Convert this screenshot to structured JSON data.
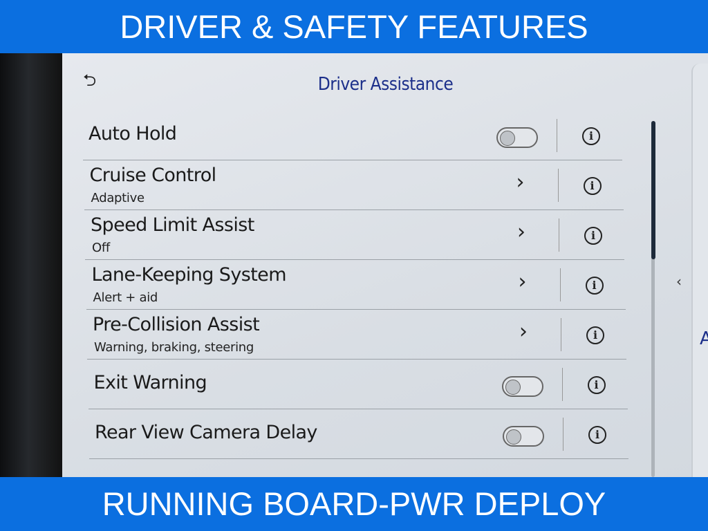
{
  "banners": {
    "top": "DRIVER & SAFETY FEATURES",
    "bottom": "RUNNING BOARD-PWR DEPLOY"
  },
  "screen": {
    "title": "Driver Assistance",
    "back_icon": "back-arrow-icon",
    "rows": [
      {
        "label": "Auto Hold",
        "sub": "",
        "control": "toggle",
        "on": false
      },
      {
        "label": "Cruise Control",
        "sub": "Adaptive",
        "control": "chevron"
      },
      {
        "label": "Speed Limit Assist",
        "sub": "Off",
        "control": "chevron"
      },
      {
        "label": "Lane-Keeping System",
        "sub": "Alert + aid",
        "control": "chevron"
      },
      {
        "label": "Pre-Collision Assist",
        "sub": "Warning, braking, steering",
        "control": "chevron"
      },
      {
        "label": "Exit Warning",
        "sub": "",
        "control": "toggle",
        "on": false
      },
      {
        "label": "Rear View Camera Delay",
        "sub": "",
        "control": "toggle",
        "on": false
      }
    ],
    "side_panel_text": "A",
    "accent": "#0b6fe0"
  }
}
